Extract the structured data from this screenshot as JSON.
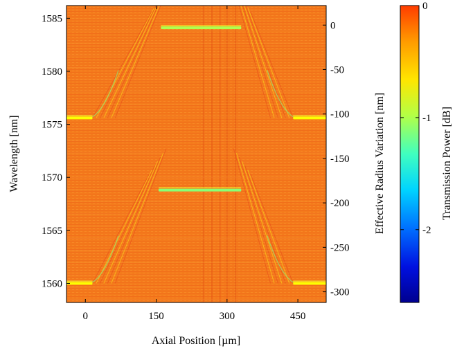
{
  "chart_data": {
    "type": "heatmap",
    "title": "",
    "xlabel": "Axial Position [µm]",
    "ylabel": "Wavelength [nm]",
    "y2label": "Effective Radius Variation [nm]",
    "colorbar_label": "Transmission Power [dB]",
    "colormap": "jet",
    "xlim": [
      -40,
      510
    ],
    "ylim": [
      1558.2,
      1586.2
    ],
    "y2lim": [
      -312,
      22
    ],
    "clim": [
      -2.65,
      0
    ],
    "x_ticks": [
      0,
      150,
      300,
      450
    ],
    "y_ticks": [
      1560,
      1565,
      1570,
      1575,
      1580,
      1585
    ],
    "y2_ticks": [
      0,
      -50,
      -100,
      -150,
      -200,
      -250,
      -300
    ],
    "colorbar_ticks": [
      0,
      -1,
      -2
    ],
    "x_tick_labels": [
      "0",
      "150",
      "300",
      "450"
    ],
    "y_tick_labels": [
      "1560",
      "1565",
      "1570",
      "1575",
      "1580",
      "1585"
    ],
    "y2_tick_labels": [
      "0",
      "-50",
      "-100",
      "-150",
      "-200",
      "-250",
      "-300"
    ],
    "colorbar_tick_labels": [
      "0",
      "-1",
      "-2"
    ],
    "background_level_db": -0.15,
    "resonance_features": [
      {
        "name": "upper plateau resonance",
        "wavelength_nm": 1584.1,
        "x_start_um": 160,
        "x_end_um": 330,
        "depth_db": -1.2
      },
      {
        "name": "lower plateau resonance",
        "wavelength_nm": 1568.8,
        "x_start_um": 155,
        "x_end_um": 330,
        "depth_db": -1.3
      },
      {
        "name": "upper left tail",
        "wavelength_nm": 1575.6,
        "x_start_um": -40,
        "x_end_um": 15,
        "depth_db": -1.0
      },
      {
        "name": "upper right tail",
        "wavelength_nm": 1575.6,
        "x_start_um": 440,
        "x_end_um": 510,
        "depth_db": -1.0
      },
      {
        "name": "lower left tail",
        "wavelength_nm": 1560.0,
        "x_start_um": -40,
        "x_end_um": 15,
        "depth_db": -1.0
      },
      {
        "name": "lower right tail",
        "wavelength_nm": 1560.0,
        "x_start_um": 440,
        "x_end_um": 510,
        "depth_db": -1.0
      }
    ]
  }
}
